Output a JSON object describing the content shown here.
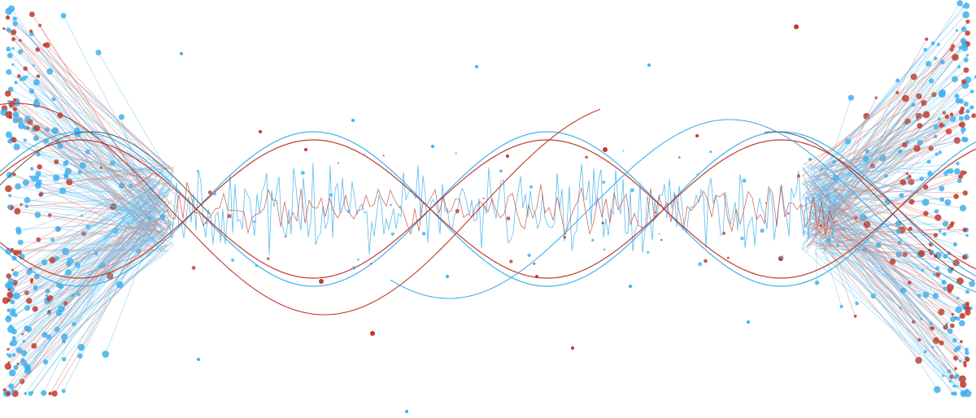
{
  "artwork": {
    "subject": "abstract-data-wave-illustration",
    "colors": {
      "background": "#ffffff",
      "blue": "#3fb0ec",
      "light_blue": "#6ac4f2",
      "red": "#c0392b",
      "light_red": "#e07a6e",
      "dark_gray": "#555a63"
    },
    "elements": [
      "left-particle-cluster",
      "right-particle-cluster",
      "sine-wave-strands",
      "noise-signal-band",
      "scattered-dots"
    ]
  }
}
